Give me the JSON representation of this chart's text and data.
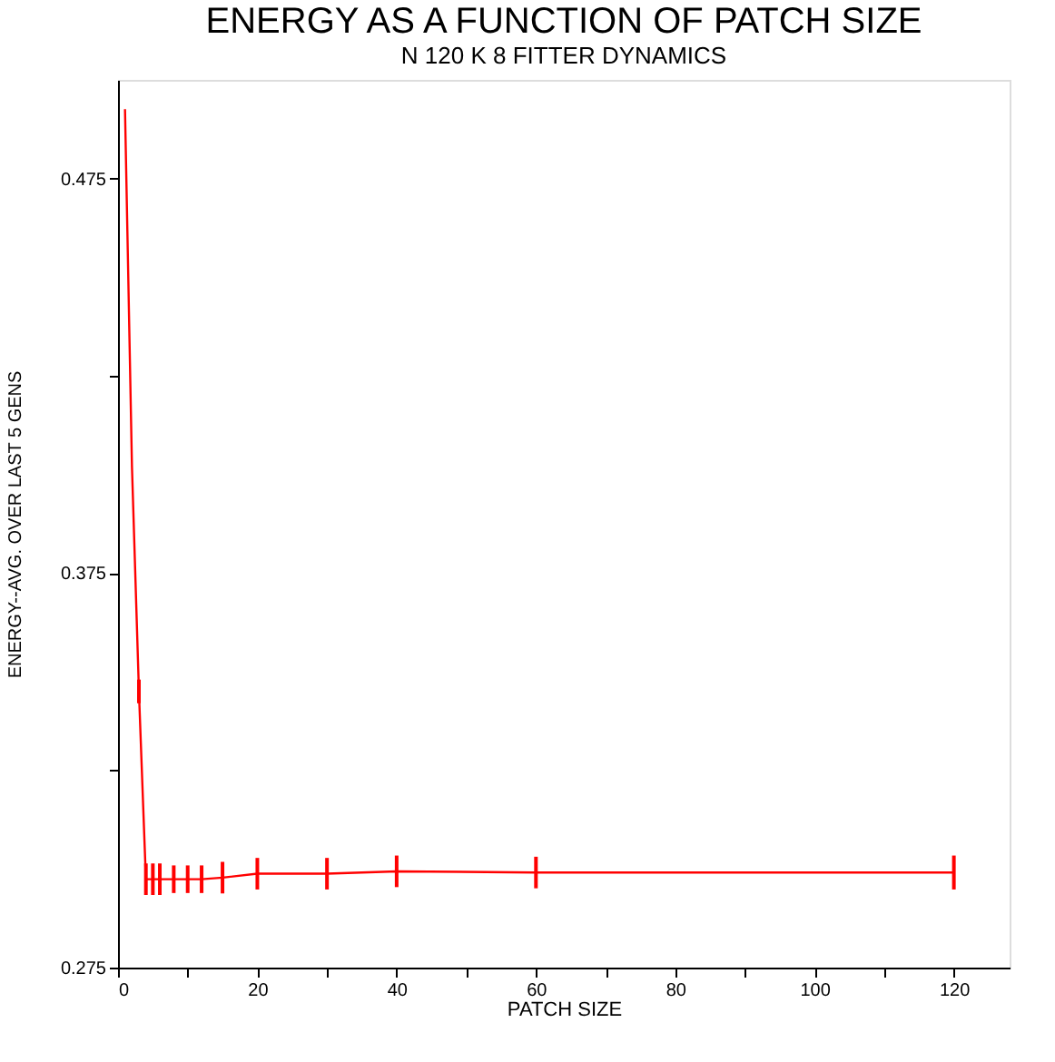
{
  "chart_data": {
    "type": "line",
    "title": "ENERGY AS A FUNCTION OF PATCH SIZE",
    "subtitle": "N 120 K 8 FITTER DYNAMICS",
    "xlabel": "PATCH SIZE",
    "ylabel": "ENERGY--AVG. OVER LAST 5 GENS",
    "x": [
      1,
      2,
      3,
      4,
      5,
      6,
      8,
      10,
      12,
      15,
      20,
      30,
      40,
      60,
      120
    ],
    "series": [
      {
        "color": "#ff0000",
        "values": [
          0.4926,
          0.402,
          0.345,
          0.2974,
          0.2974,
          0.2974,
          0.2974,
          0.2974,
          0.2974,
          0.2978,
          0.2988,
          0.2988,
          0.2994,
          0.2991,
          0.2991
        ],
        "errors": [
          null,
          null,
          0.003,
          0.004,
          0.004,
          0.004,
          0.0035,
          0.0035,
          0.0035,
          0.004,
          0.004,
          0.004,
          0.004,
          0.004,
          0.0043
        ]
      }
    ],
    "xlim": [
      0,
      128
    ],
    "xticks": [
      0,
      {
        "value": 10,
        "label": null
      },
      20,
      {
        "value": 30,
        "label": null
      },
      40,
      {
        "value": 50,
        "label": null
      },
      60,
      {
        "value": 70,
        "label": null
      },
      80,
      {
        "value": 90,
        "label": null
      },
      100,
      {
        "value": 110,
        "label": null
      },
      120
    ],
    "ylim": [
      0.275,
      0.5
    ],
    "yticks": [
      0.275,
      {
        "value": 0.325,
        "label": null
      },
      0.375,
      {
        "value": 0.425,
        "label": null
      },
      0.475
    ],
    "grid": false,
    "marker": "none",
    "line_style": "solid"
  }
}
